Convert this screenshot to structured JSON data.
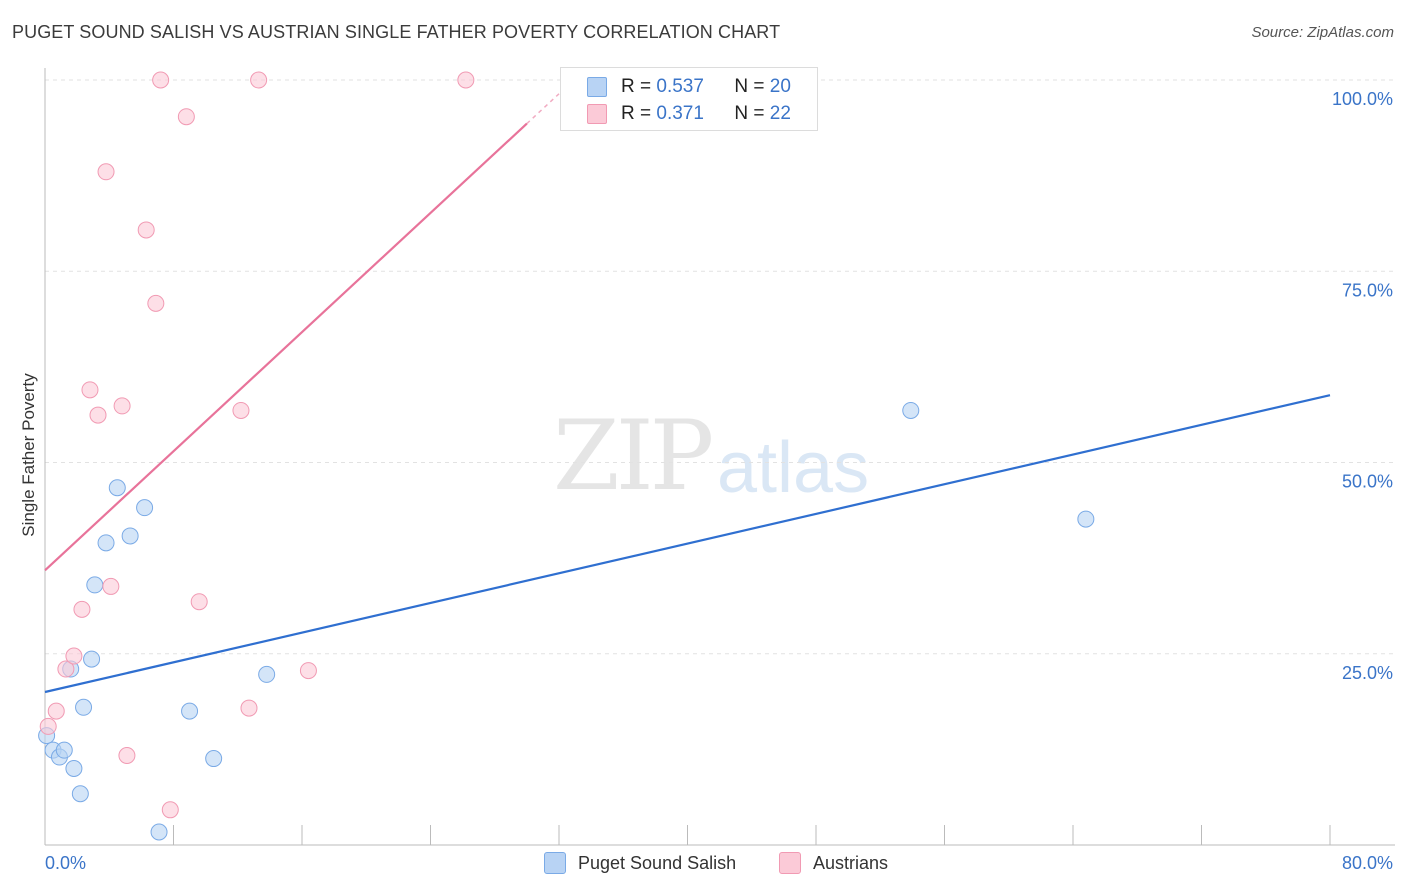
{
  "header": {
    "title": "PUGET SOUND SALISH VS AUSTRIAN SINGLE FATHER POVERTY CORRELATION CHART",
    "source": "Source: ZipAtlas.com"
  },
  "watermark": {
    "zip": "ZIP",
    "atlas": "atlas"
  },
  "legend": {
    "r_label": "R =",
    "n_label": "N =",
    "series": [
      {
        "name": "Puget Sound Salish",
        "r": "0.537",
        "n": "20",
        "fill": "#b8d3f4",
        "stroke": "#7aaae6"
      },
      {
        "name": "Austrians",
        "r": "0.371",
        "n": "22",
        "fill": "#fbcad7",
        "stroke": "#f19ab3"
      }
    ]
  },
  "chart_data": {
    "type": "scatter",
    "title": "PUGET SOUND SALISH VS AUSTRIAN SINGLE FATHER POVERTY CORRELATION CHART",
    "xlabel": "",
    "ylabel": "Single Father Poverty",
    "xlim": [
      0,
      80
    ],
    "ylim": [
      0,
      100
    ],
    "x_tick_labels": {
      "min": "0.0%",
      "max": "80.0%"
    },
    "y_ticks": [
      {
        "value": 25,
        "label": "25.0%"
      },
      {
        "value": 50,
        "label": "50.0%"
      },
      {
        "value": 75,
        "label": "75.0%"
      },
      {
        "value": 100,
        "label": "100.0%"
      }
    ],
    "colors": {
      "blue": "#2f6fd0",
      "pink": "#e8739a",
      "grid": "#e2e2e2",
      "axis": "#bbbbbb"
    },
    "series": [
      {
        "name": "Puget Sound Salish",
        "color": "#7aaae6",
        "fill": "#b8d3f4",
        "points": [
          [
            0.1,
            14.3
          ],
          [
            0.5,
            12.4
          ],
          [
            0.9,
            11.5
          ],
          [
            1.2,
            12.4
          ],
          [
            1.6,
            23.0
          ],
          [
            1.8,
            10.0
          ],
          [
            2.2,
            6.7
          ],
          [
            2.4,
            18.0
          ],
          [
            2.9,
            24.3
          ],
          [
            3.1,
            34.0
          ],
          [
            3.8,
            39.5
          ],
          [
            4.5,
            46.7
          ],
          [
            5.3,
            40.4
          ],
          [
            6.2,
            44.1
          ],
          [
            7.1,
            1.7
          ],
          [
            9.0,
            17.5
          ],
          [
            10.5,
            11.3
          ],
          [
            13.8,
            22.3
          ],
          [
            53.9,
            56.8
          ],
          [
            64.8,
            42.6
          ]
        ]
      },
      {
        "name": "Austrians",
        "color": "#f19ab3",
        "fill": "#fbcad7",
        "points": [
          [
            0.2,
            15.5
          ],
          [
            0.7,
            17.5
          ],
          [
            1.3,
            23.0
          ],
          [
            1.8,
            24.7
          ],
          [
            2.3,
            30.8
          ],
          [
            2.8,
            59.5
          ],
          [
            3.3,
            56.2
          ],
          [
            3.8,
            88.0
          ],
          [
            4.1,
            33.8
          ],
          [
            4.8,
            57.4
          ],
          [
            5.1,
            11.7
          ],
          [
            6.3,
            80.4
          ],
          [
            6.9,
            70.8
          ],
          [
            7.2,
            100.0
          ],
          [
            7.8,
            4.6
          ],
          [
            8.8,
            95.2
          ],
          [
            9.6,
            31.8
          ],
          [
            12.2,
            56.8
          ],
          [
            12.7,
            17.9
          ],
          [
            13.3,
            100.0
          ],
          [
            16.4,
            22.8
          ],
          [
            26.2,
            100.0
          ]
        ]
      }
    ],
    "trend_lines": [
      {
        "series": "Puget Sound Salish",
        "x": [
          0,
          80
        ],
        "y": [
          20.0,
          58.8
        ]
      },
      {
        "series": "Austrians",
        "x": [
          0,
          30.0
        ],
        "y": [
          35.9,
          94.3
        ],
        "dashed_extension_to": [
          32.0,
          98.2
        ]
      }
    ]
  }
}
